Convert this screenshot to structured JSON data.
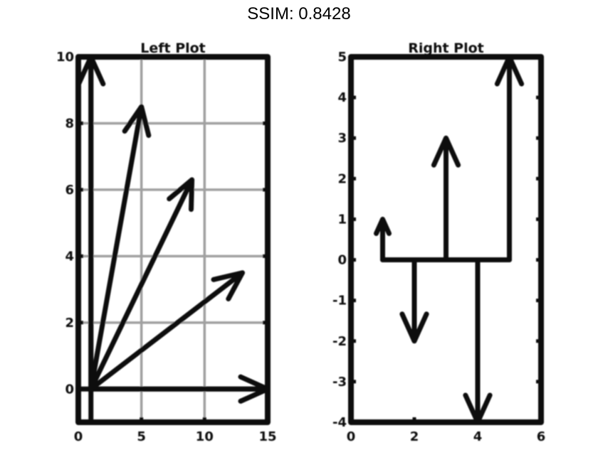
{
  "header": {
    "title": "SSIM: 0.8428"
  },
  "chart_data": [
    {
      "type": "quiver",
      "title": "Left Plot",
      "grid": true,
      "xlim": [
        0,
        15
      ],
      "ylim": [
        -1,
        10
      ],
      "x_ticks": [
        "0",
        "5",
        "10",
        "15"
      ],
      "y_ticks": [
        "0",
        "2",
        "4",
        "6",
        "8",
        "10"
      ],
      "arrows": [
        {
          "x": 1,
          "y": 0,
          "u": 0,
          "v": 10
        },
        {
          "x": 1,
          "y": 0,
          "u": 4,
          "v": 8.5
        },
        {
          "x": 1,
          "y": 0,
          "u": 8,
          "v": 6.3
        },
        {
          "x": 1,
          "y": 0,
          "u": 12,
          "v": 3.5
        },
        {
          "x": 1,
          "y": 0,
          "u": 14,
          "v": 0
        }
      ]
    },
    {
      "type": "quiver",
      "title": "Right Plot",
      "grid": false,
      "xlim": [
        0,
        6
      ],
      "ylim": [
        -4,
        5
      ],
      "x_ticks": [
        "0",
        "2",
        "4",
        "6"
      ],
      "y_ticks": [
        "-4",
        "-3",
        "-2",
        "-1",
        "0",
        "1",
        "2",
        "3",
        "4",
        "5"
      ],
      "arrows": [
        {
          "x": 1,
          "y": 0,
          "u": 0,
          "v": 1
        },
        {
          "x": 2,
          "y": 0,
          "u": 0,
          "v": -2
        },
        {
          "x": 3,
          "y": 0,
          "u": 0,
          "v": 3
        },
        {
          "x": 4,
          "y": 0,
          "u": 0,
          "v": -4
        },
        {
          "x": 5,
          "y": 0,
          "u": 0,
          "v": 5
        }
      ]
    }
  ]
}
